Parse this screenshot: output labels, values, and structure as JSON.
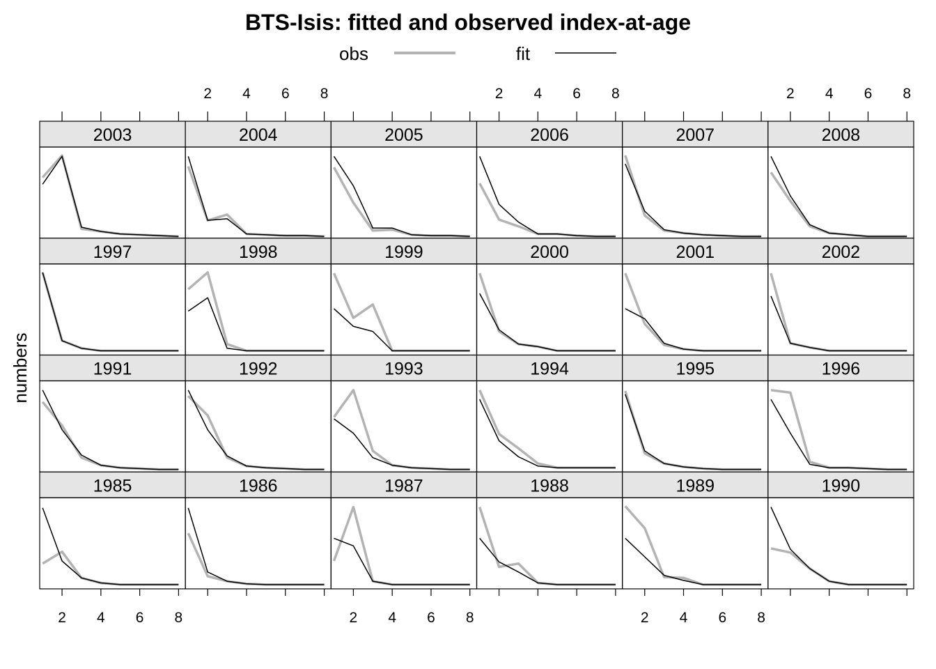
{
  "chart_data": {
    "type": "line",
    "title": "BTS-Isis: fitted and observed index-at-age",
    "ylabel": "numbers",
    "xlabel": "",
    "x": [
      1,
      2,
      3,
      4,
      5,
      6,
      7,
      8
    ],
    "xlim": [
      0.85,
      8.35
    ],
    "ylim": [
      0,
      1.08
    ],
    "xticks": [
      2,
      4,
      6,
      8
    ],
    "colors": {
      "obs": "#b3b3b3",
      "fit": "#000000",
      "strip": "#e5e5e5"
    },
    "legend": {
      "placement": "top",
      "entries": [
        {
          "key": "obs",
          "label": "obs"
        },
        {
          "key": "fit",
          "label": "fit"
        }
      ]
    },
    "panels": [
      {
        "year": "2003",
        "obs": [
          0.72,
          0.98,
          0.11,
          0.08,
          0.05,
          0.04,
          0.03,
          0.02
        ],
        "fit": [
          0.64,
          0.97,
          0.13,
          0.08,
          0.05,
          0.04,
          0.03,
          0.02
        ]
      },
      {
        "year": "2004",
        "obs": [
          0.85,
          0.21,
          0.28,
          0.05,
          0.04,
          0.03,
          0.03,
          0.02
        ],
        "fit": [
          0.97,
          0.21,
          0.23,
          0.05,
          0.04,
          0.03,
          0.03,
          0.02
        ]
      },
      {
        "year": "2005",
        "obs": [
          0.84,
          0.42,
          0.09,
          0.1,
          0.04,
          0.03,
          0.03,
          0.02
        ],
        "fit": [
          0.97,
          0.62,
          0.12,
          0.12,
          0.04,
          0.03,
          0.03,
          0.02
        ]
      },
      {
        "year": "2006",
        "obs": [
          0.65,
          0.22,
          0.14,
          0.05,
          0.05,
          0.03,
          0.02,
          0.02
        ],
        "fit": [
          0.97,
          0.4,
          0.19,
          0.05,
          0.05,
          0.03,
          0.02,
          0.02
        ]
      },
      {
        "year": "2007",
        "obs": [
          0.98,
          0.27,
          0.09,
          0.06,
          0.04,
          0.03,
          0.02,
          0.02
        ],
        "fit": [
          0.88,
          0.32,
          0.1,
          0.06,
          0.04,
          0.03,
          0.02,
          0.02
        ]
      },
      {
        "year": "2008",
        "obs": [
          0.78,
          0.44,
          0.14,
          0.06,
          0.04,
          0.02,
          0.02,
          0.02
        ],
        "fit": [
          0.97,
          0.5,
          0.16,
          0.06,
          0.04,
          0.02,
          0.02,
          0.02
        ]
      },
      {
        "year": "1997",
        "obs": [
          0.98,
          0.17,
          0.08,
          0.05,
          0.05,
          0.05,
          0.05,
          0.05
        ],
        "fit": [
          0.98,
          0.17,
          0.08,
          0.05,
          0.05,
          0.05,
          0.05,
          0.05
        ]
      },
      {
        "year": "1998",
        "obs": [
          0.78,
          0.98,
          0.13,
          0.05,
          0.05,
          0.05,
          0.05,
          0.05
        ],
        "fit": [
          0.52,
          0.68,
          0.08,
          0.05,
          0.05,
          0.05,
          0.05,
          0.05
        ]
      },
      {
        "year": "1999",
        "obs": [
          0.97,
          0.44,
          0.6,
          0.05,
          0.05,
          0.05,
          0.05,
          0.05
        ],
        "fit": [
          0.55,
          0.34,
          0.28,
          0.05,
          0.05,
          0.05,
          0.05,
          0.05
        ]
      },
      {
        "year": "2000",
        "obs": [
          0.97,
          0.28,
          0.13,
          0.1,
          0.05,
          0.05,
          0.05,
          0.05
        ],
        "fit": [
          0.73,
          0.3,
          0.13,
          0.1,
          0.05,
          0.05,
          0.05,
          0.05
        ]
      },
      {
        "year": "2001",
        "obs": [
          0.97,
          0.37,
          0.12,
          0.07,
          0.05,
          0.05,
          0.05,
          0.05
        ],
        "fit": [
          0.55,
          0.43,
          0.14,
          0.07,
          0.05,
          0.05,
          0.05,
          0.05
        ]
      },
      {
        "year": "2002",
        "obs": [
          0.97,
          0.14,
          0.09,
          0.05,
          0.05,
          0.05,
          0.05,
          0.05
        ],
        "fit": [
          0.7,
          0.14,
          0.09,
          0.05,
          0.05,
          0.05,
          0.05,
          0.05
        ]
      },
      {
        "year": "1991",
        "obs": [
          0.83,
          0.55,
          0.17,
          0.08,
          0.05,
          0.04,
          0.03,
          0.03
        ],
        "fit": [
          0.97,
          0.5,
          0.2,
          0.08,
          0.05,
          0.04,
          0.03,
          0.03
        ]
      },
      {
        "year": "1992",
        "obs": [
          0.9,
          0.67,
          0.17,
          0.07,
          0.05,
          0.04,
          0.03,
          0.03
        ],
        "fit": [
          0.97,
          0.5,
          0.19,
          0.07,
          0.05,
          0.04,
          0.03,
          0.03
        ]
      },
      {
        "year": "1993",
        "obs": [
          0.65,
          0.97,
          0.25,
          0.08,
          0.05,
          0.04,
          0.03,
          0.03
        ],
        "fit": [
          0.63,
          0.46,
          0.17,
          0.08,
          0.05,
          0.04,
          0.03,
          0.03
        ]
      },
      {
        "year": "1994",
        "obs": [
          0.97,
          0.45,
          0.28,
          0.1,
          0.05,
          0.05,
          0.05,
          0.05
        ],
        "fit": [
          0.86,
          0.37,
          0.18,
          0.07,
          0.05,
          0.05,
          0.05,
          0.05
        ]
      },
      {
        "year": "1995",
        "obs": [
          0.96,
          0.22,
          0.1,
          0.06,
          0.04,
          0.03,
          0.03,
          0.03
        ],
        "fit": [
          0.92,
          0.25,
          0.1,
          0.06,
          0.04,
          0.03,
          0.03,
          0.03
        ]
      },
      {
        "year": "1996",
        "obs": [
          0.97,
          0.94,
          0.12,
          0.05,
          0.05,
          0.04,
          0.03,
          0.03
        ],
        "fit": [
          0.86,
          0.46,
          0.09,
          0.05,
          0.05,
          0.04,
          0.03,
          0.03
        ]
      },
      {
        "year": "1985",
        "obs": [
          0.3,
          0.44,
          0.13,
          0.07,
          0.05,
          0.05,
          0.05,
          0.05
        ],
        "fit": [
          0.96,
          0.33,
          0.13,
          0.07,
          0.05,
          0.05,
          0.05,
          0.05
        ]
      },
      {
        "year": "1986",
        "obs": [
          0.66,
          0.15,
          0.09,
          0.06,
          0.05,
          0.05,
          0.05,
          0.05
        ],
        "fit": [
          0.96,
          0.2,
          0.09,
          0.06,
          0.05,
          0.05,
          0.05,
          0.05
        ]
      },
      {
        "year": "1987",
        "obs": [
          0.33,
          0.97,
          0.09,
          0.05,
          0.05,
          0.05,
          0.05,
          0.05
        ],
        "fit": [
          0.6,
          0.51,
          0.09,
          0.05,
          0.05,
          0.05,
          0.05,
          0.05
        ]
      },
      {
        "year": "1988",
        "obs": [
          0.97,
          0.26,
          0.3,
          0.07,
          0.05,
          0.05,
          0.05,
          0.05
        ],
        "fit": [
          0.6,
          0.32,
          0.2,
          0.07,
          0.05,
          0.05,
          0.05,
          0.05
        ]
      },
      {
        "year": "1989",
        "obs": [
          0.98,
          0.72,
          0.14,
          0.13,
          0.05,
          0.05,
          0.05,
          0.05
        ],
        "fit": [
          0.6,
          0.38,
          0.16,
          0.1,
          0.05,
          0.05,
          0.05,
          0.05
        ]
      },
      {
        "year": "1990",
        "obs": [
          0.48,
          0.43,
          0.24,
          0.09,
          0.05,
          0.05,
          0.05,
          0.05
        ],
        "fit": [
          0.97,
          0.47,
          0.24,
          0.09,
          0.05,
          0.05,
          0.05,
          0.05
        ]
      }
    ]
  }
}
